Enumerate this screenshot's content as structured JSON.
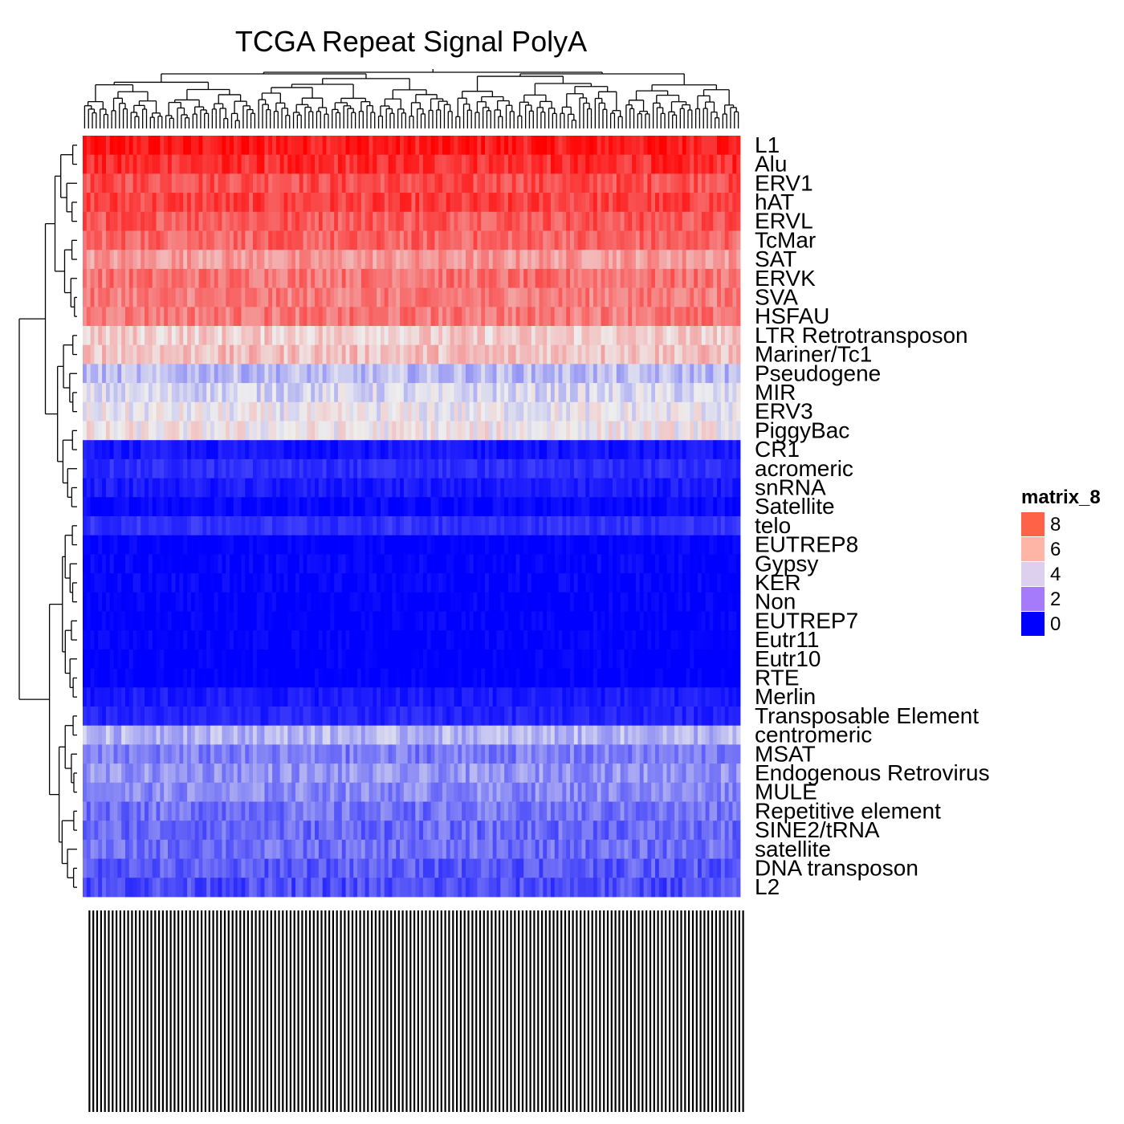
{
  "chart_data": {
    "type": "heatmap",
    "title": "TCGA Repeat Signal PolyA",
    "legend": {
      "title": "matrix_8",
      "placement": "right",
      "ticks": [
        8,
        6,
        4,
        2,
        0
      ],
      "colors": [
        "#ff6347",
        "#ffb5a6",
        "#ddd0ee",
        "#a57bfb",
        "#0000ff"
      ]
    },
    "color_scale": {
      "low": "#0000ff",
      "mid": "#eeeeee",
      "high": "#ff0000",
      "min": 0,
      "mid_value": 5,
      "max": 10
    },
    "columns": 170,
    "column_labels_note": "sample labels overlapping and illegible",
    "row_dendrogram": true,
    "column_dendrogram": true,
    "rows": [
      {
        "label": "L1",
        "mean": 9.5
      },
      {
        "label": "Alu",
        "mean": 9.0
      },
      {
        "label": "ERV1",
        "mean": 8.4
      },
      {
        "label": "hAT",
        "mean": 8.6
      },
      {
        "label": "ERVL",
        "mean": 8.2
      },
      {
        "label": "TcMar",
        "mean": 7.9
      },
      {
        "label": "SAT",
        "mean": 6.8
      },
      {
        "label": "ERVK",
        "mean": 7.6
      },
      {
        "label": "SVA",
        "mean": 7.4
      },
      {
        "label": "HSFAU",
        "mean": 7.5
      },
      {
        "label": "LTR Retrotransposon",
        "mean": 5.7
      },
      {
        "label": "Mariner/Tc1",
        "mean": 6.0
      },
      {
        "label": "Pseudogene",
        "mean": 3.9
      },
      {
        "label": "MIR",
        "mean": 4.5
      },
      {
        "label": "ERV3",
        "mean": 4.9
      },
      {
        "label": "PiggyBac",
        "mean": 5.1
      },
      {
        "label": "CR1",
        "mean": 0.6
      },
      {
        "label": "acromeric",
        "mean": 1.1
      },
      {
        "label": "snRNA",
        "mean": 0.7
      },
      {
        "label": "Satellite",
        "mean": 0.3
      },
      {
        "label": "telo",
        "mean": 1.2
      },
      {
        "label": "EUTREP8",
        "mean": 0.1
      },
      {
        "label": "Gypsy",
        "mean": 0.2
      },
      {
        "label": "KER",
        "mean": 0.2
      },
      {
        "label": "Non",
        "mean": 0.1
      },
      {
        "label": "EUTREP7",
        "mean": 0.1
      },
      {
        "label": "Eutr11",
        "mean": 0.1
      },
      {
        "label": "Eutr10",
        "mean": 0.1
      },
      {
        "label": "RTE",
        "mean": 0.1
      },
      {
        "label": "Merlin",
        "mean": 0.7
      },
      {
        "label": "Transposable Element",
        "mean": 0.9
      },
      {
        "label": "centromeric",
        "mean": 3.8
      },
      {
        "label": "MSAT",
        "mean": 2.6
      },
      {
        "label": "Endogenous Retrovirus",
        "mean": 3.1
      },
      {
        "label": "MULE",
        "mean": 2.9
      },
      {
        "label": "Repetitive element",
        "mean": 2.4
      },
      {
        "label": "SINE2/tRNA",
        "mean": 2.2
      },
      {
        "label": "satellite",
        "mean": 2.3
      },
      {
        "label": "DNA transposon",
        "mean": 1.9
      },
      {
        "label": "L2",
        "mean": 1.6
      }
    ]
  }
}
